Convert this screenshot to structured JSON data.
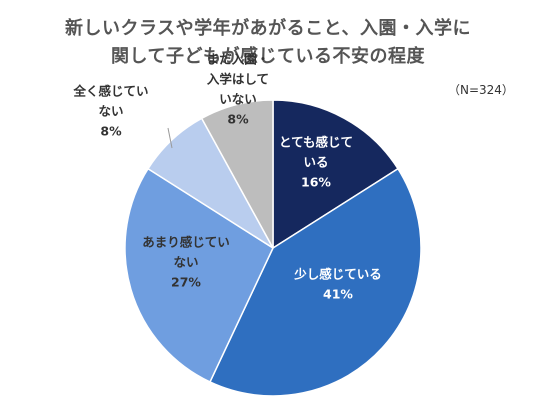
{
  "title_lines": [
    "新しいクラスや学年があがること、入園・入学に",
    "関して子どもが感じている不安の程度"
  ],
  "note": "（N=324）",
  "colors": {
    "text_dark": "#333333",
    "text_light": "#ffffff"
  },
  "chart_data": {
    "type": "pie",
    "title": "新しいクラスや学年があがること、入園・入学に関して子どもが感じている不安の程度",
    "note": "（N=324）",
    "slices": [
      {
        "name": "とても感じている",
        "label_lines": [
          "とても感じて",
          "いる"
        ],
        "value": 16,
        "value_label": "16%",
        "color": "#15285e",
        "text_color": "#ffffff"
      },
      {
        "name": "少し感じている",
        "label_lines": [
          "少し感じている"
        ],
        "value": 41,
        "value_label": "41%",
        "color": "#2f6fc0",
        "text_color": "#ffffff"
      },
      {
        "name": "あまり感じていない",
        "label_lines": [
          "あまり感じてい",
          "ない"
        ],
        "value": 27,
        "value_label": "27%",
        "color": "#6f9ee0",
        "text_color": "#333333"
      },
      {
        "name": "全く感じていない",
        "label_lines": [
          "全く感じてい",
          "ない"
        ],
        "value": 8,
        "value_label": "8%",
        "color": "#b9cdee",
        "text_color": "#333333"
      },
      {
        "name": "まだ入園・入学はしていない",
        "label_lines": [
          "まだ入園・",
          "入学はして",
          "いない"
        ],
        "value": 8,
        "value_label": "8%",
        "color": "#bdbdbd",
        "text_color": "#333333"
      }
    ]
  }
}
